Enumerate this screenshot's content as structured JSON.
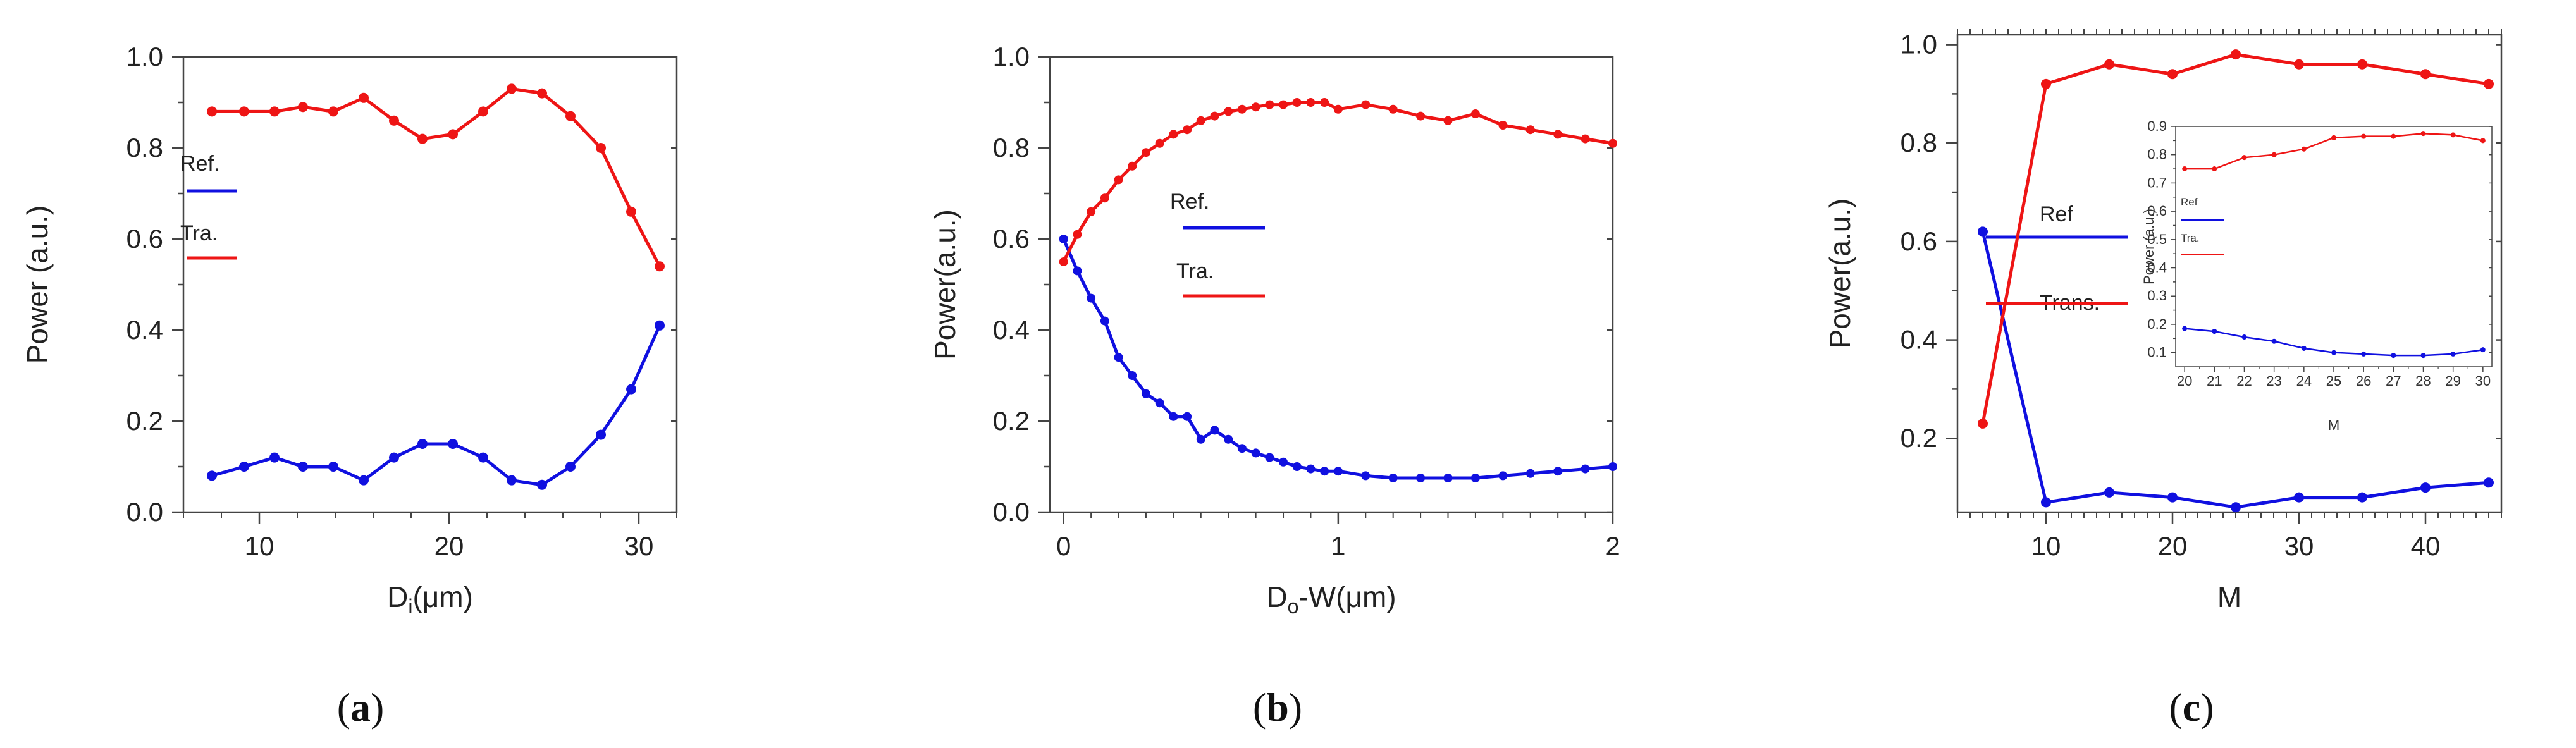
{
  "colors": {
    "ref": "#1010e0",
    "tra": "#ee1515",
    "axis": "#444444"
  },
  "chart_data": [
    {
      "type": "line",
      "panel": "a",
      "panel_label": "a",
      "xlabel_main": "D",
      "xlabel_sub": "i",
      "xlabel_unit": "(μm)",
      "ylabel": "Power (a.u.)",
      "xlim": [
        6,
        32
      ],
      "ylim": [
        0,
        1
      ],
      "xticks": [
        10,
        20,
        30
      ],
      "yticks": [
        0.0,
        0.2,
        0.4,
        0.6,
        0.8,
        1.0
      ],
      "ytick_labels": [
        "0.0",
        "0.2",
        "0.4",
        "0.6",
        "0.8",
        "1.0"
      ],
      "series": [
        {
          "name": "Ref.",
          "color_key": "ref",
          "x": [
            7.5,
            9.2,
            10.8,
            12.3,
            13.9,
            15.5,
            17.1,
            18.6,
            20.2,
            21.8,
            23.3,
            24.9,
            26.4,
            28.0,
            29.6,
            31.1
          ],
          "y": [
            0.08,
            0.1,
            0.12,
            0.1,
            0.1,
            0.07,
            0.12,
            0.15,
            0.15,
            0.12,
            0.07,
            0.06,
            0.1,
            0.17,
            0.27,
            0.41
          ]
        },
        {
          "name": "Tra.",
          "color_key": "tra",
          "x": [
            7.5,
            9.2,
            10.8,
            12.3,
            13.9,
            15.5,
            17.1,
            18.6,
            20.2,
            21.8,
            23.3,
            24.9,
            26.4,
            28.0,
            29.6,
            31.1
          ],
          "y": [
            0.88,
            0.88,
            0.88,
            0.89,
            0.88,
            0.91,
            0.86,
            0.82,
            0.83,
            0.88,
            0.93,
            0.92,
            0.87,
            0.8,
            0.66,
            0.54
          ]
        }
      ]
    },
    {
      "type": "line",
      "panel": "b",
      "panel_label": "b",
      "xlabel_main": "D",
      "xlabel_sub": "o",
      "xlabel_unit": "-W(μm)",
      "ylabel": "Power(a.u.)",
      "xlim": [
        -0.05,
        2.0
      ],
      "ylim": [
        0,
        1
      ],
      "xticks": [
        0,
        1,
        2
      ],
      "yticks": [
        0.0,
        0.2,
        0.4,
        0.6,
        0.8,
        1.0
      ],
      "ytick_labels": [
        "0.0",
        "0.2",
        "0.4",
        "0.6",
        "0.8",
        "1.0"
      ],
      "series": [
        {
          "name": "Ref.",
          "color_key": "ref",
          "x": [
            0.0,
            0.05,
            0.1,
            0.15,
            0.2,
            0.25,
            0.3,
            0.35,
            0.4,
            0.45,
            0.5,
            0.55,
            0.6,
            0.65,
            0.7,
            0.75,
            0.8,
            0.85,
            0.9,
            0.95,
            1.0,
            1.1,
            1.2,
            1.3,
            1.4,
            1.5,
            1.6,
            1.7,
            1.8,
            1.9,
            2.0
          ],
          "y": [
            0.6,
            0.53,
            0.47,
            0.42,
            0.34,
            0.3,
            0.26,
            0.24,
            0.21,
            0.21,
            0.16,
            0.18,
            0.16,
            0.14,
            0.13,
            0.12,
            0.11,
            0.1,
            0.095,
            0.09,
            0.09,
            0.08,
            0.075,
            0.075,
            0.075,
            0.075,
            0.08,
            0.085,
            0.09,
            0.095,
            0.1
          ]
        },
        {
          "name": "Tra.",
          "color_key": "tra",
          "x": [
            0.0,
            0.05,
            0.1,
            0.15,
            0.2,
            0.25,
            0.3,
            0.35,
            0.4,
            0.45,
            0.5,
            0.55,
            0.6,
            0.65,
            0.7,
            0.75,
            0.8,
            0.85,
            0.9,
            0.95,
            1.0,
            1.1,
            1.2,
            1.3,
            1.4,
            1.5,
            1.6,
            1.7,
            1.8,
            1.9,
            2.0
          ],
          "y": [
            0.55,
            0.61,
            0.66,
            0.69,
            0.73,
            0.76,
            0.79,
            0.81,
            0.83,
            0.84,
            0.86,
            0.87,
            0.88,
            0.885,
            0.89,
            0.895,
            0.895,
            0.9,
            0.9,
            0.9,
            0.885,
            0.895,
            0.885,
            0.87,
            0.86,
            0.875,
            0.85,
            0.84,
            0.83,
            0.82,
            0.81
          ]
        }
      ]
    },
    {
      "type": "line",
      "panel": "c",
      "panel_label": "c",
      "xlabel": "M",
      "ylabel": "Power(a.u.)",
      "xlim": [
        3,
        46
      ],
      "ylim": [
        0.05,
        1.02
      ],
      "xticks": [
        10,
        20,
        30,
        40
      ],
      "yticks": [
        0.2,
        0.4,
        0.6,
        0.8,
        1.0
      ],
      "ytick_labels": [
        "0.2",
        "0.4",
        "0.6",
        "0.8",
        "1.0"
      ],
      "series": [
        {
          "name": "Ref",
          "color_key": "ref",
          "x": [
            5,
            10,
            15,
            20,
            25,
            30,
            35,
            40,
            45
          ],
          "y": [
            0.62,
            0.07,
            0.09,
            0.08,
            0.06,
            0.08,
            0.08,
            0.1,
            0.11
          ]
        },
        {
          "name": "Trans.",
          "color_key": "tra",
          "x": [
            5,
            10,
            15,
            20,
            25,
            30,
            35,
            40,
            45
          ],
          "y": [
            0.23,
            0.92,
            0.96,
            0.94,
            0.98,
            0.96,
            0.96,
            0.94,
            0.92
          ]
        }
      ]
    },
    {
      "type": "line",
      "panel": "c-inset",
      "xlabel": "M",
      "ylabel": "Power (a.u.)",
      "xlim": [
        19.7,
        30.3
      ],
      "ylim": [
        0.05,
        0.9
      ],
      "xticks": [
        20,
        21,
        22,
        23,
        24,
        25,
        26,
        27,
        28,
        29,
        30
      ],
      "yticks": [
        0.1,
        0.2,
        0.3,
        0.4,
        0.5,
        0.6,
        0.7,
        0.8,
        0.9
      ],
      "ytick_labels": [
        "0.1",
        "0.2",
        "0.3",
        "0.4",
        "0.5",
        "0.6",
        "0.7",
        "0.8",
        "0.9"
      ],
      "series": [
        {
          "name": "Ref",
          "color_key": "ref",
          "x": [
            20,
            21,
            22,
            23,
            24,
            25,
            26,
            27,
            28,
            29,
            30
          ],
          "y": [
            0.185,
            0.175,
            0.155,
            0.14,
            0.115,
            0.1,
            0.095,
            0.09,
            0.09,
            0.095,
            0.11
          ]
        },
        {
          "name": "Tra.",
          "color_key": "tra",
          "x": [
            20,
            21,
            22,
            23,
            24,
            25,
            26,
            27,
            28,
            29,
            30
          ],
          "y": [
            0.75,
            0.75,
            0.79,
            0.8,
            0.82,
            0.86,
            0.865,
            0.865,
            0.875,
            0.87,
            0.85
          ]
        }
      ]
    }
  ]
}
